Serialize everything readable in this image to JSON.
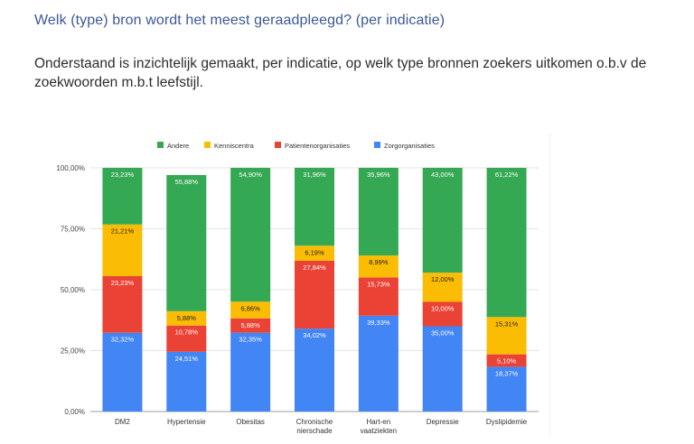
{
  "page": {
    "title": "Welk (type) bron wordt het meest geraadpleegd? (per indicatie)",
    "intro": "Onderstaand is inzichtelijk gemaakt, per indicatie, op welk type bronnen zoekers uitkomen o.b.v de zoekwoorden m.b.t leefstijl."
  },
  "colors": {
    "Andere": "#34a853",
    "Kenniscentra": "#fbbc04",
    "Patientenorganisaties": "#ea4335",
    "Zorgorganisaties": "#4285f4"
  },
  "chart_data": {
    "type": "bar",
    "stacked": true,
    "title": "",
    "xlabel": "",
    "ylabel": "",
    "ylim": [
      0,
      100
    ],
    "yticks": [
      "0,00%",
      "25,00%",
      "50,00%",
      "75,00%",
      "100,00%"
    ],
    "legend_position": "top",
    "categories": [
      [
        "DM2"
      ],
      [
        "Hypertensie"
      ],
      [
        "Obesitas"
      ],
      [
        "Chronische",
        "nierschade"
      ],
      [
        "Hart-en",
        "vaatziekten"
      ],
      [
        "Depressie"
      ],
      [
        "Dyslipidemie"
      ]
    ],
    "series": [
      {
        "name": "Zorgorganisaties",
        "values": [
          32.32,
          24.51,
          32.35,
          34.02,
          39.33,
          35.0,
          18.37
        ],
        "labels": [
          "32,32%",
          "24,51%",
          "32,35%",
          "34,02%",
          "39,33%",
          "35,00%",
          "18,37%"
        ]
      },
      {
        "name": "Patientenorganisaties",
        "values": [
          23.23,
          10.78,
          5.88,
          27.84,
          15.73,
          10.0,
          5.1
        ],
        "labels": [
          "23,23%",
          "10,78%",
          "5,88%",
          "27,84%",
          "15,73%",
          "10,00%",
          "5,10%"
        ]
      },
      {
        "name": "Kenniscentra",
        "values": [
          21.21,
          5.88,
          6.86,
          6.19,
          8.99,
          12.0,
          15.31
        ],
        "labels": [
          "21,21%",
          "5,88%",
          "6,86%",
          "6,19%",
          "8,99%",
          "12,00%",
          "15,31%"
        ]
      },
      {
        "name": "Andere",
        "values": [
          23.23,
          55.88,
          54.9,
          31.96,
          35.96,
          43.0,
          61.22
        ],
        "labels": [
          "23,23%",
          "55,88%",
          "54,90%",
          "31,96%",
          "35,96%",
          "43,00%",
          "61,22%"
        ]
      }
    ],
    "legend": [
      "Andere",
      "Kenniscentra",
      "Patientenorganisaties",
      "Zorgorganisaties"
    ]
  }
}
